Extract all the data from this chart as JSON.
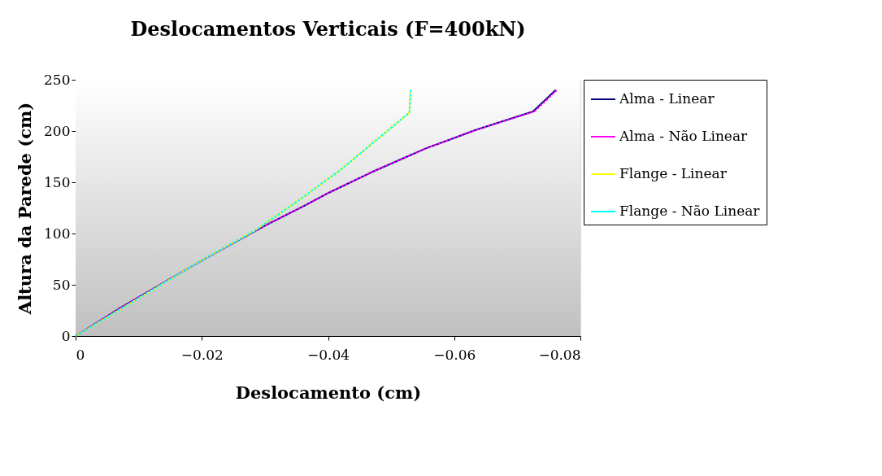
{
  "chart_data": {
    "type": "line",
    "title": "Deslocamentos Verticais (F=400kN)",
    "xlabel": "Deslocamento (cm)",
    "ylabel": "Altura da Parede (cm)",
    "xlim": [
      0,
      -0.08
    ],
    "xticks": [
      0,
      -0.02,
      -0.04,
      -0.06,
      -0.08
    ],
    "ylim": [
      0,
      250
    ],
    "yticks": [
      0,
      50,
      100,
      150,
      200,
      250
    ],
    "grid": false,
    "legend": "right",
    "marker": "none",
    "series": [
      {
        "name": "Alma - Linear",
        "color": "#000080",
        "line_style": "solid",
        "x": [
          0,
          -0.0072,
          -0.02,
          -0.0303,
          -0.0365,
          -0.0401,
          -0.0468,
          -0.0529,
          -0.0555,
          -0.0602,
          -0.0633,
          -0.0725,
          -0.0761
        ],
        "values": [
          0,
          27.8,
          73.8,
          108.7,
          127.8,
          139.7,
          159.5,
          176,
          183,
          193.6,
          200.8,
          219,
          240
        ]
      },
      {
        "name": "Alma - Não Linear",
        "color": "#ff00ff",
        "line_style": "dashed",
        "x": [
          0,
          -0.0072,
          -0.02,
          -0.0303,
          -0.0365,
          -0.0401,
          -0.0468,
          -0.0529,
          -0.0555,
          -0.0602,
          -0.0633,
          -0.0727,
          -0.0763
        ],
        "values": [
          0,
          27.8,
          73.8,
          108.7,
          127.8,
          139.7,
          159.5,
          176,
          183,
          193.6,
          200.8,
          219,
          240
        ]
      },
      {
        "name": "Flange - Linear",
        "color": "#ffff00",
        "line_style": "solid",
        "x": [
          0,
          -0.0076,
          -0.02,
          -0.0282,
          -0.0354,
          -0.0421,
          -0.0483,
          -0.0529,
          -0.0531
        ],
        "values": [
          0,
          28,
          74,
          102,
          132.5,
          162.7,
          194.4,
          218,
          240
        ]
      },
      {
        "name": "Flange - Não Linear",
        "color": "#00ffff",
        "line_style": "dashed",
        "x": [
          0,
          -0.0076,
          -0.02,
          -0.0282,
          -0.0354,
          -0.0421,
          -0.0483,
          -0.0529,
          -0.0531
        ],
        "values": [
          0,
          28,
          74,
          102,
          132.5,
          162.7,
          194.4,
          218,
          240
        ]
      }
    ]
  }
}
